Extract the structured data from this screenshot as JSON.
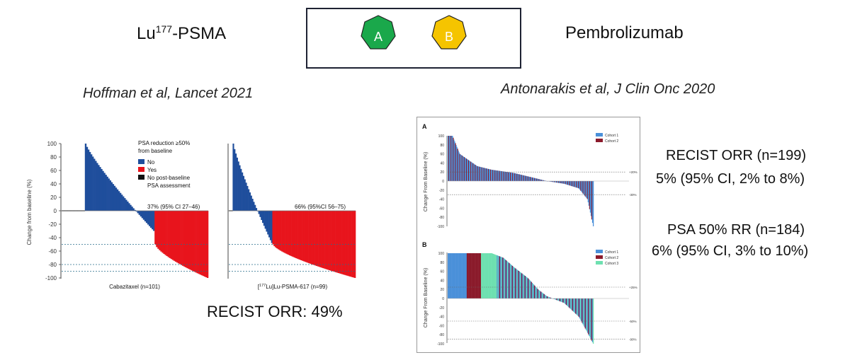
{
  "header": {
    "left_title_main": "Lu",
    "left_title_sup": "177",
    "left_title_rest": "-PSMA",
    "right_title": "Pembrolizumab",
    "badge_a": "A",
    "badge_b": "B",
    "colors": {
      "badge_a": "#1aa84b",
      "badge_b": "#f5c400",
      "box_border": "#1e2233"
    }
  },
  "citations": {
    "left": "Hoffman et al, Lancet 2021",
    "right": "Antonarakis et al, J Clin Onc 2020"
  },
  "stats": {
    "left_recist": "RECIST ORR: 49%",
    "recist_line1": "RECIST ORR (n=199)",
    "recist_line2": "5% (95% CI, 2% to 8%)",
    "psa_line1": "PSA 50% RR (n=184)",
    "psa_line2": "6% (95% CI, 3% to 10%)"
  },
  "chart_data": [
    {
      "type": "bar",
      "panel": "Cabazitaxel",
      "ylabel": "Change from baseline (%)",
      "xlabel": "Cabazitaxel (n=101)",
      "ylim": [
        -100,
        100
      ],
      "yticks": [
        100,
        80,
        60,
        40,
        20,
        0,
        -20,
        -40,
        -60,
        -80,
        -100
      ],
      "reference_lines": [
        -50,
        -80,
        -90
      ],
      "annotation": "37% (95% CI 27–46)",
      "legend": {
        "title_line1": "PSA reduction ≥50%",
        "title_line2": "from baseline",
        "items": [
          {
            "label": "No",
            "color": "#1f4e9c"
          },
          {
            "label": "Yes",
            "color": "#e8141c"
          },
          {
            "label": "No post-baseline",
            "label2": "PSA assessment",
            "color": "#111111"
          }
        ]
      },
      "n": 101,
      "segments": [
        {
          "category": "No post-baseline PSA assessment",
          "count": 16,
          "start": 0,
          "end": 0
        },
        {
          "category": "No",
          "count": 48,
          "start": 100,
          "end": -30
        },
        {
          "category": "Yes",
          "count": 37,
          "start": -50,
          "end": -100
        }
      ]
    },
    {
      "type": "bar",
      "panel": "177Lu-PSMA-617",
      "xlabel_prefix": "[",
      "xlabel_sup": "177",
      "xlabel_rest": "Lu]Lu-PSMA-617 (n=99)",
      "ylim": [
        -100,
        100
      ],
      "reference_lines": [
        -50,
        -80,
        -90
      ],
      "annotation": "66% (95%CI 56–75)",
      "n": 99,
      "segments": [
        {
          "category": "No post-baseline PSA assessment",
          "count": 3,
          "start": 0,
          "end": 0
        },
        {
          "category": "No",
          "count": 31,
          "start": 100,
          "end": -48
        },
        {
          "category": "Yes",
          "count": 65,
          "start": -50,
          "end": -100
        }
      ]
    },
    {
      "type": "bar",
      "panel_label": "A",
      "ylabel": "Change From Baseline (%)",
      "ylim": [
        -100,
        100
      ],
      "yticks": [
        100,
        80,
        60,
        40,
        20,
        0,
        -20,
        -40,
        -60,
        -80,
        -100
      ],
      "reference_lines": [
        {
          "value": 20,
          "label": "+20%"
        },
        {
          "value": -30,
          "label": "-30%"
        }
      ],
      "legend": [
        {
          "label": "Cohort 1",
          "color": "#4a90d9"
        },
        {
          "label": "Cohort 2",
          "color": "#8b1a2b"
        }
      ],
      "n": 199,
      "profile": [
        [
          0,
          100
        ],
        [
          0.03,
          100
        ],
        [
          0.08,
          60
        ],
        [
          0.2,
          33
        ],
        [
          0.3,
          25
        ],
        [
          0.45,
          18
        ],
        [
          0.58,
          8
        ],
        [
          0.68,
          0
        ],
        [
          0.8,
          -6
        ],
        [
          0.9,
          -16
        ],
        [
          0.96,
          -40
        ],
        [
          0.98,
          -70
        ],
        [
          1,
          -100
        ]
      ]
    },
    {
      "type": "bar",
      "panel_label": "B",
      "ylabel": "Change From Baseline (%)",
      "ylim": [
        -100,
        100
      ],
      "yticks": [
        100,
        80,
        60,
        40,
        20,
        0,
        -20,
        -40,
        -60,
        -80,
        -100
      ],
      "reference_lines": [
        {
          "value": 25,
          "label": "+25%"
        },
        {
          "value": -50,
          "label": "-50%"
        },
        {
          "value": -90,
          "label": "-90%"
        }
      ],
      "legend": [
        {
          "label": "Cohort 1",
          "color": "#4a90d9"
        },
        {
          "label": "Cohort 2",
          "color": "#8b1a2b"
        },
        {
          "label": "Cohort 3",
          "color": "#6ee0b0"
        }
      ],
      "n": 184,
      "profile": [
        [
          0,
          100
        ],
        [
          0.3,
          100
        ],
        [
          0.38,
          90
        ],
        [
          0.45,
          70
        ],
        [
          0.55,
          45
        ],
        [
          0.62,
          20
        ],
        [
          0.68,
          5
        ],
        [
          0.72,
          0
        ],
        [
          0.8,
          -10
        ],
        [
          0.9,
          -40
        ],
        [
          0.96,
          -75
        ],
        [
          1,
          -100
        ]
      ]
    }
  ]
}
